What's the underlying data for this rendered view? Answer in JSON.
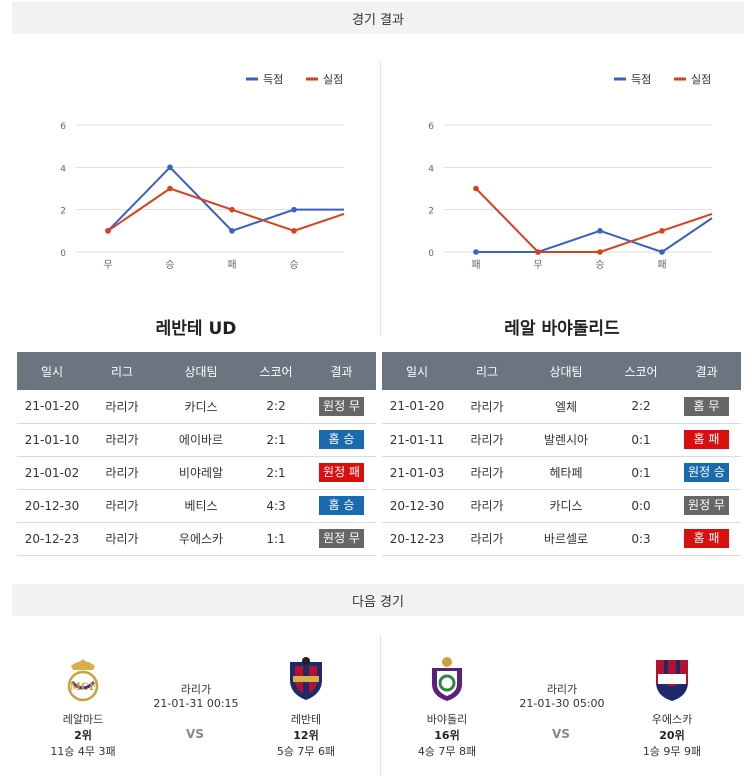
{
  "sections": {
    "results_title": "경기 결과",
    "next_title": "다음 경기"
  },
  "colors": {
    "scored": "#3a5fc8",
    "conceded": "#d9411e",
    "win": "#1a6ab0",
    "loss": "#d80f0f",
    "draw": "#666666"
  },
  "chart_data": [
    {
      "type": "line",
      "title": "",
      "categories": [
        "무",
        "승",
        "패",
        "승",
        ""
      ],
      "ylim": [
        0,
        6
      ],
      "yticks": [
        0,
        2,
        4,
        6
      ],
      "legend": "top-right",
      "series": [
        {
          "name": "득점",
          "values": [
            1,
            4,
            1,
            2,
            2
          ]
        },
        {
          "name": "실점",
          "values": [
            1,
            3,
            2,
            1,
            1.8
          ]
        }
      ]
    },
    {
      "type": "line",
      "title": "",
      "categories": [
        "패",
        "무",
        "승",
        "패",
        ""
      ],
      "ylim": [
        0,
        6
      ],
      "yticks": [
        0,
        2,
        4,
        6
      ],
      "legend": "top-right",
      "series": [
        {
          "name": "득점",
          "values": [
            0,
            0,
            1,
            0,
            1.6
          ]
        },
        {
          "name": "실점",
          "values": [
            3,
            0,
            0,
            1,
            1.8
          ]
        }
      ]
    }
  ],
  "tables": [
    {
      "team": "레반테 UD",
      "headers": [
        "일시",
        "리그",
        "상대팀",
        "스코어",
        "결과"
      ],
      "rows": [
        {
          "date": "21-01-20",
          "league": "라리가",
          "opponent": "카디스",
          "score": "2:2",
          "result": "원정 무",
          "type": "draw"
        },
        {
          "date": "21-01-10",
          "league": "라리가",
          "opponent": "에이바르",
          "score": "2:1",
          "result": "홈 승",
          "type": "win"
        },
        {
          "date": "21-01-02",
          "league": "라리가",
          "opponent": "비야레알",
          "score": "2:1",
          "result": "원정 패",
          "type": "loss"
        },
        {
          "date": "20-12-30",
          "league": "라리가",
          "opponent": "베티스",
          "score": "4:3",
          "result": "홈 승",
          "type": "win"
        },
        {
          "date": "20-12-23",
          "league": "라리가",
          "opponent": "우에스카",
          "score": "1:1",
          "result": "원정 무",
          "type": "draw"
        }
      ]
    },
    {
      "team": "레알 바야돌리드",
      "headers": [
        "일시",
        "리그",
        "상대팀",
        "스코어",
        "결과"
      ],
      "rows": [
        {
          "date": "21-01-20",
          "league": "라리가",
          "opponent": "엘체",
          "score": "2:2",
          "result": "홈 무",
          "type": "draw"
        },
        {
          "date": "21-01-11",
          "league": "라리가",
          "opponent": "발렌시아",
          "score": "0:1",
          "result": "홈 패",
          "type": "loss"
        },
        {
          "date": "21-01-03",
          "league": "라리가",
          "opponent": "헤타페",
          "score": "0:1",
          "result": "원정 승",
          "type": "win"
        },
        {
          "date": "20-12-30",
          "league": "라리가",
          "opponent": "카디스",
          "score": "0:0",
          "result": "원정 무",
          "type": "draw"
        },
        {
          "date": "20-12-23",
          "league": "라리가",
          "opponent": "바르셀로",
          "score": "0:3",
          "result": "홈 패",
          "type": "loss"
        }
      ]
    }
  ],
  "next_matches": [
    {
      "home": {
        "name": "레알마드",
        "rank": "2위",
        "record": "11승 4무 3패"
      },
      "league": "라리가",
      "datetime": "21-01-31 00:15",
      "vs": "VS",
      "away": {
        "name": "레반테",
        "rank": "12위",
        "record": "5승 7무 6패"
      }
    },
    {
      "home": {
        "name": "바야돌리",
        "rank": "16위",
        "record": "4승 7무 8패"
      },
      "league": "라리가",
      "datetime": "21-01-30 05:00",
      "vs": "VS",
      "away": {
        "name": "우에스카",
        "rank": "20위",
        "record": "1승 9무 9패"
      }
    }
  ]
}
